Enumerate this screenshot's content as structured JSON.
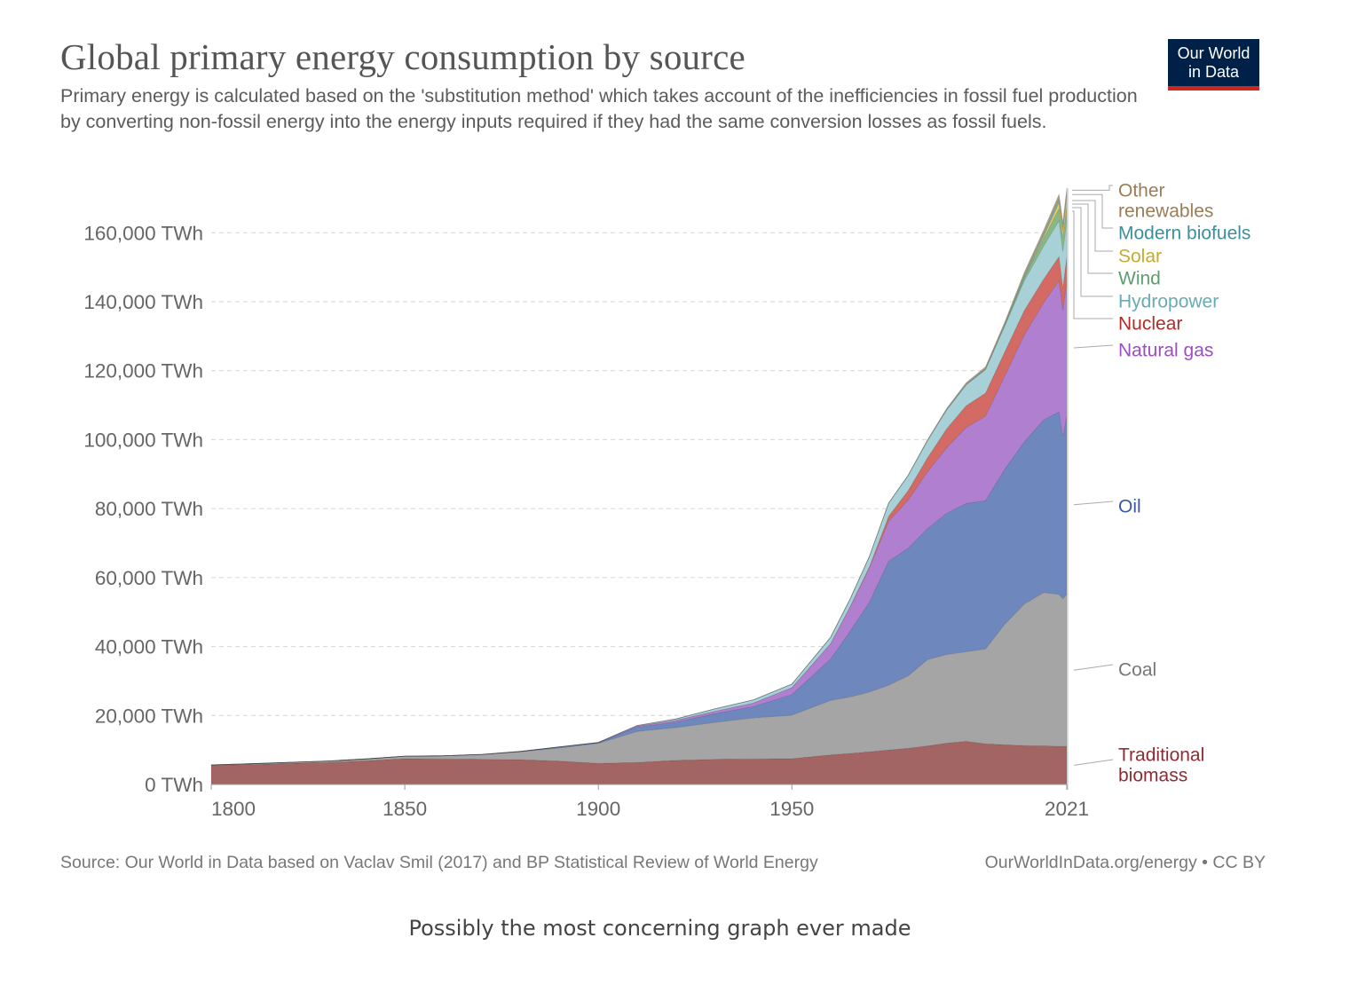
{
  "header": {
    "title": "Global primary energy consumption by source",
    "subtitle": "Primary energy is calculated based on the 'substitution method' which takes account of the inefficiencies in fossil fuel production by converting non-fossil energy into the energy inputs required if they had the same conversion losses as fossil fuels.",
    "logo_line1": "Our World",
    "logo_line2": "in Data"
  },
  "footer": {
    "source": "Source: Our World in Data based on Vaclav Smil (2017) and BP Statistical Review of World Energy",
    "license": "OurWorldInData.org/energy • CC BY"
  },
  "caption": "Possibly the most concerning graph ever made",
  "colors": {
    "logo_bg": "#002147",
    "logo_accent": "#ce261e"
  },
  "chart_data": {
    "type": "area",
    "stacked": true,
    "title": "Global primary energy consumption by source",
    "xlim": [
      1800,
      2021
    ],
    "ylim": [
      0,
      175000
    ],
    "x_ticks": [
      1800,
      1850,
      1900,
      1950,
      2021
    ],
    "x_tick_labels": [
      "1800",
      "1850",
      "1900",
      "1950",
      "2021"
    ],
    "y_ticks": [
      0,
      20000,
      40000,
      60000,
      80000,
      100000,
      120000,
      140000,
      160000
    ],
    "y_tick_labels": [
      "0 TWh",
      "20,000 TWh",
      "40,000 TWh",
      "60,000 TWh",
      "80,000 TWh",
      "100,000 TWh",
      "120,000 TWh",
      "140,000 TWh",
      "160,000 TWh"
    ],
    "grid": "horizontal dashed",
    "legend": "right, end-of-line labels",
    "x": [
      1800,
      1810,
      1820,
      1830,
      1840,
      1850,
      1860,
      1870,
      1880,
      1890,
      1900,
      1910,
      1920,
      1930,
      1940,
      1950,
      1960,
      1965,
      1970,
      1975,
      1980,
      1985,
      1990,
      1995,
      2000,
      2005,
      2010,
      2015,
      2019,
      2020,
      2021
    ],
    "series": [
      {
        "name": "Traditional biomass",
        "label": "Traditional\nbiomass",
        "color": "#a36464",
        "label_color": "#8e2c34",
        "values": [
          5556,
          5800,
          6100,
          6400,
          6900,
          7500,
          7400,
          7300,
          7200,
          6800,
          6111,
          6400,
          7000,
          7300,
          7400,
          7500,
          8600,
          9000,
          9500,
          10000,
          10500,
          11200,
          12000,
          12500,
          11800,
          11500,
          11300,
          11200,
          11100,
          11100,
          11111
        ]
      },
      {
        "name": "Coal",
        "label": "Coal",
        "color": "#a5a5a5",
        "label_color": "#777777",
        "values": [
          100,
          200,
          300,
          400,
          500,
          700,
          900,
          1400,
          2300,
          3800,
          5800,
          9000,
          9500,
          10700,
          11900,
          12600,
          15800,
          16400,
          17300,
          18800,
          21000,
          25000,
          25700,
          26000,
          27500,
          35000,
          41000,
          44500,
          44000,
          42800,
          44000
        ]
      },
      {
        "name": "Oil",
        "label": "Oil",
        "color": "#6e87bd",
        "label_color": "#3f58a0",
        "values": [
          0,
          0,
          0,
          0,
          0,
          0,
          0,
          30,
          100,
          300,
          200,
          1200,
          1600,
          2500,
          3300,
          6000,
          12000,
          19000,
          26000,
          36000,
          37000,
          38000,
          41000,
          43000,
          43000,
          45000,
          47000,
          50000,
          53000,
          47000,
          52000
        ]
      },
      {
        "name": "Natural gas",
        "label": "Natural gas",
        "color": "#b17fcf",
        "label_color": "#9b4ebd",
        "values": [
          0,
          0,
          0,
          0,
          0,
          0,
          0,
          0,
          0,
          0,
          100,
          300,
          500,
          700,
          1000,
          2000,
          4500,
          7000,
          10000,
          11500,
          14000,
          16500,
          19000,
          22000,
          24500,
          27000,
          31000,
          34000,
          38000,
          36500,
          39000
        ]
      },
      {
        "name": "Nuclear",
        "label": "Nuclear",
        "color": "#d36a64",
        "label_color": "#b02c26",
        "values": [
          0,
          0,
          0,
          0,
          0,
          0,
          0,
          0,
          0,
          0,
          0,
          0,
          0,
          0,
          0,
          0,
          0,
          100,
          300,
          1500,
          2700,
          4000,
          5500,
          6300,
          6700,
          7000,
          7100,
          6800,
          7000,
          6700,
          6900
        ]
      },
      {
        "name": "Hydropower",
        "label": "Hydropower",
        "color": "#a7d1d6",
        "label_color": "#6aaab6",
        "values": [
          0,
          0,
          0,
          0,
          0,
          0,
          0,
          0,
          0,
          0,
          0,
          200,
          400,
          700,
          900,
          1000,
          1800,
          2200,
          3000,
          3800,
          4400,
          5000,
          5500,
          6100,
          6800,
          7500,
          8600,
          9600,
          10400,
          10500,
          10500
        ]
      },
      {
        "name": "Wind",
        "label": "Wind",
        "color": "#87b987",
        "label_color": "#5e9e6e",
        "values": [
          0,
          0,
          0,
          0,
          0,
          0,
          0,
          0,
          0,
          0,
          0,
          0,
          0,
          0,
          0,
          0,
          0,
          0,
          0,
          0,
          0,
          0,
          0,
          20,
          80,
          250,
          900,
          2100,
          3500,
          3900,
          4300
        ]
      },
      {
        "name": "Solar",
        "label": "Solar",
        "color": "#e6c95b",
        "label_color": "#c9a92f",
        "values": [
          0,
          0,
          0,
          0,
          0,
          0,
          0,
          0,
          0,
          0,
          0,
          0,
          0,
          0,
          0,
          0,
          0,
          0,
          0,
          0,
          0,
          0,
          0,
          0,
          0,
          5,
          80,
          650,
          1800,
          2200,
          2700
        ]
      },
      {
        "name": "Modern biofuels",
        "label": "Modern biofuels",
        "color": "#6fb7bf",
        "label_color": "#3e8e9b",
        "values": [
          0,
          0,
          0,
          0,
          0,
          0,
          0,
          0,
          0,
          0,
          0,
          0,
          0,
          0,
          0,
          0,
          0,
          0,
          0,
          0,
          30,
          100,
          150,
          200,
          250,
          350,
          700,
          900,
          1100,
          1100,
          1100
        ]
      },
      {
        "name": "Other renewables",
        "label": "Other\nrenewables",
        "color": "#b99c7c",
        "label_color": "#9a7d58",
        "values": [
          0,
          0,
          0,
          0,
          0,
          0,
          0,
          0,
          0,
          0,
          0,
          0,
          0,
          0,
          0,
          0,
          0,
          0,
          0,
          50,
          100,
          200,
          300,
          400,
          500,
          600,
          800,
          1000,
          1300,
          1350,
          1400
        ]
      }
    ]
  }
}
